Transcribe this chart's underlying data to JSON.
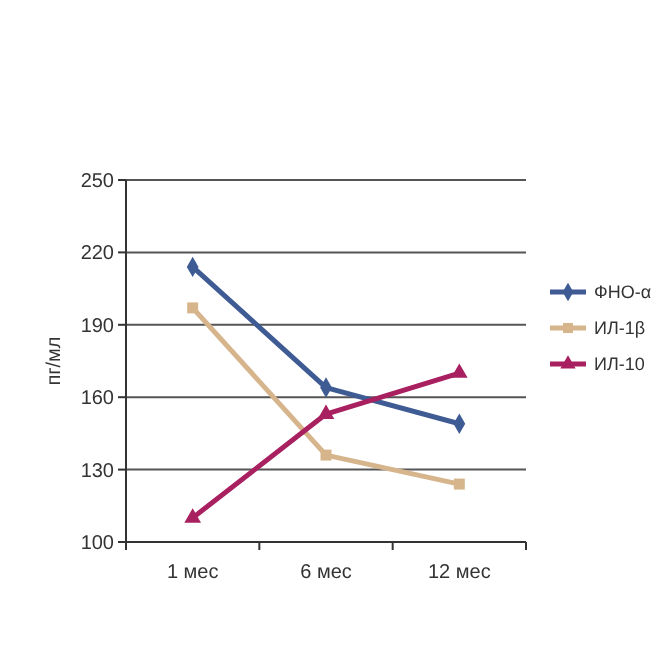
{
  "chart_data": {
    "type": "line",
    "ylabel": "пг/мл",
    "categories": [
      "1 мес",
      "6 мес",
      "12 мес"
    ],
    "ylim": [
      100,
      250
    ],
    "yticks": [
      100,
      130,
      160,
      190,
      220,
      250
    ],
    "grid": "y",
    "legend": "right",
    "line_style": "solid",
    "series": [
      {
        "name": "ФНО-α",
        "color": "#3f5b93",
        "marker": "diamond",
        "values": [
          214,
          164,
          149
        ]
      },
      {
        "name": "ИЛ-1β",
        "color": "#d6b48c",
        "marker": "square",
        "values": [
          197,
          136,
          124
        ]
      },
      {
        "name": "ИЛ-10",
        "color": "#a8205f",
        "marker": "triangle",
        "values": [
          110,
          153,
          170
        ]
      }
    ]
  }
}
